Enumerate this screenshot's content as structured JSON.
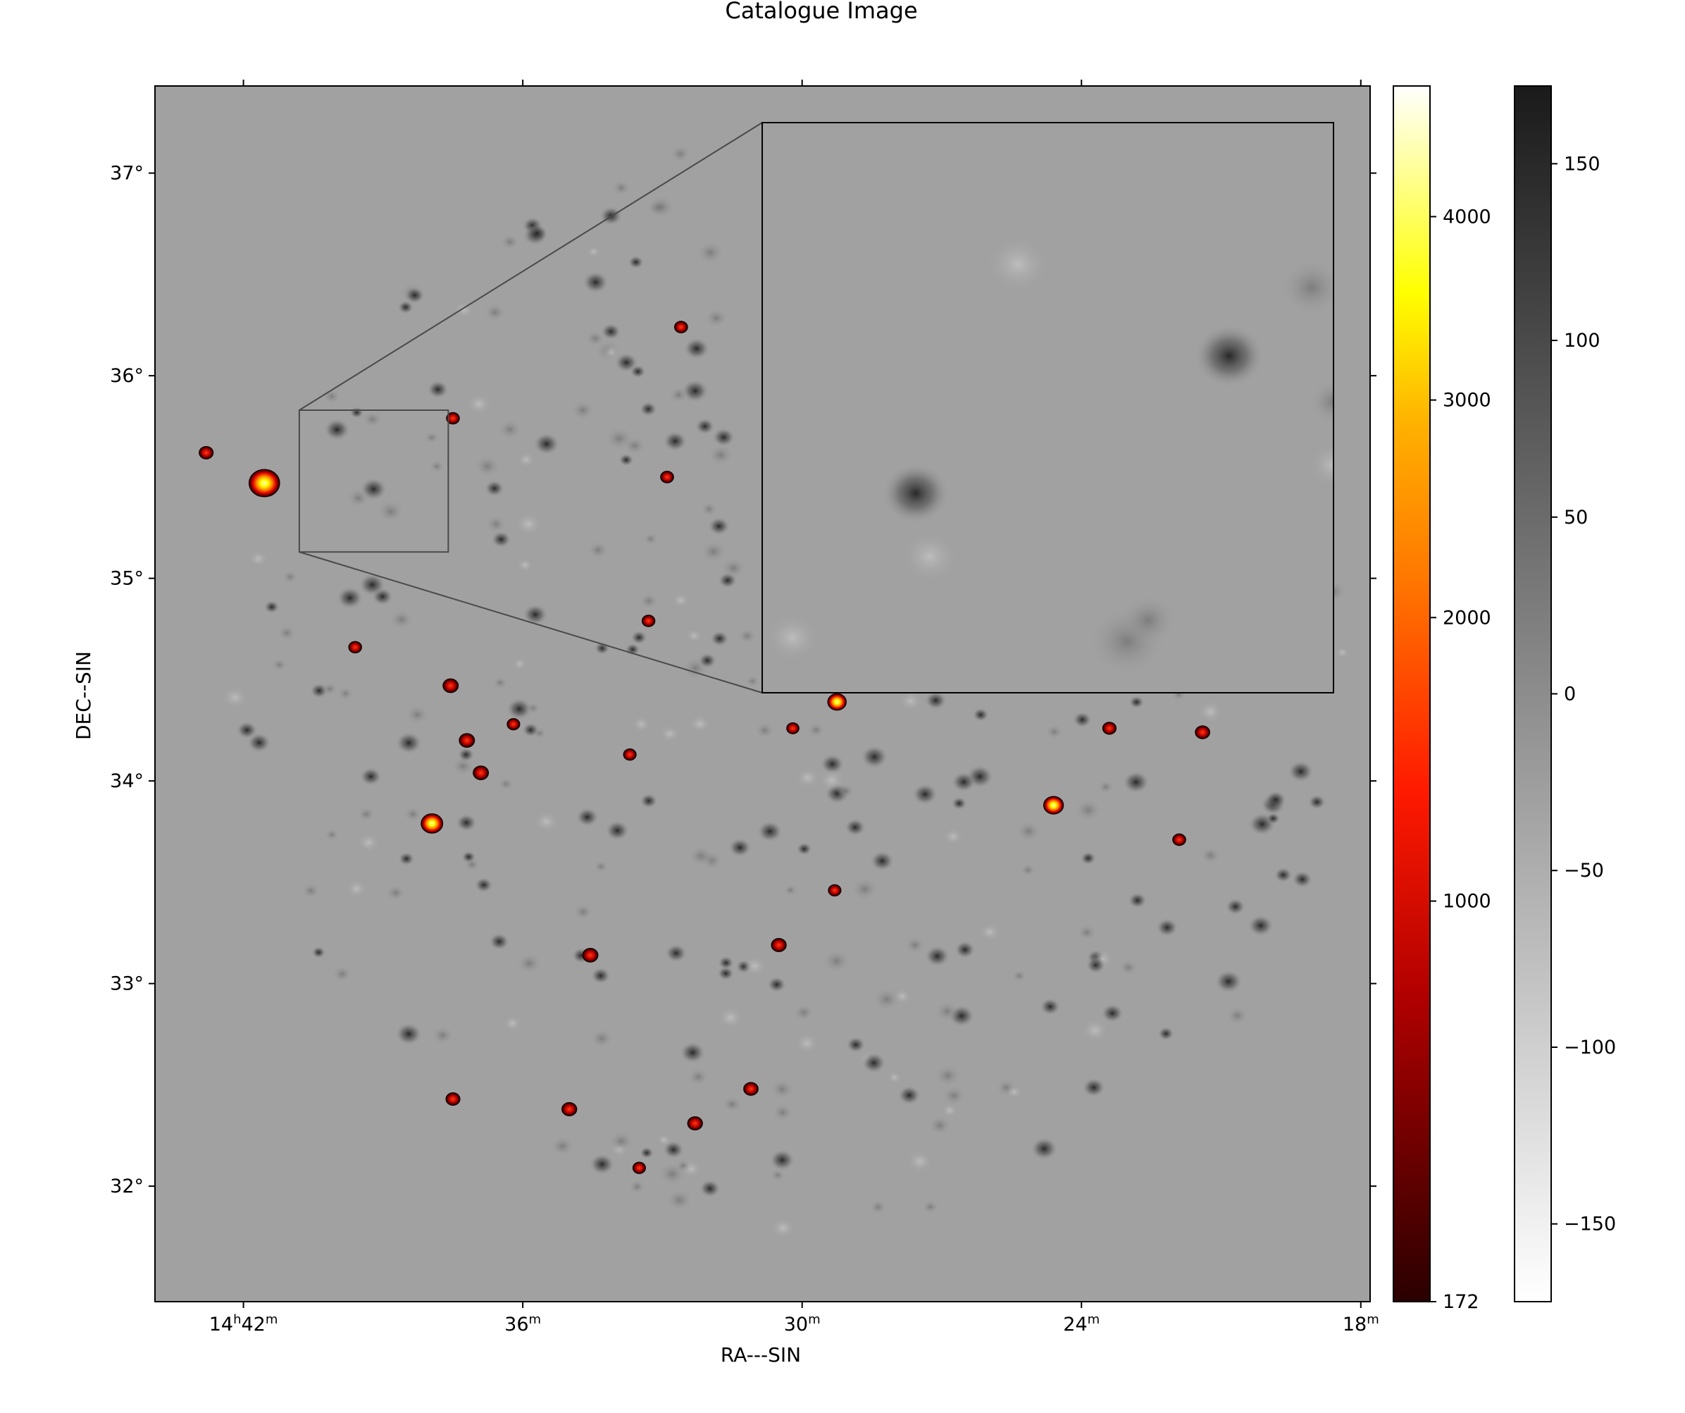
{
  "chart_data": {
    "type": "heatmap",
    "title": "Catalogue Image",
    "xlabel": "RA---SIN",
    "ylabel": "DEC--SIN",
    "xlim_min": [
      43.9,
      17.8
    ],
    "ylim_deg": [
      31.43,
      37.43
    ],
    "x_ticks": [
      {
        "min": 42,
        "label_main": "14",
        "label_sup1": "h",
        "label_num": "42",
        "label_sup2": "m"
      },
      {
        "min": 36,
        "label_main": "36",
        "label_sup1": "",
        "label_num": "",
        "label_sup2": "m"
      },
      {
        "min": 30,
        "label_main": "30",
        "label_sup1": "",
        "label_num": "",
        "label_sup2": "m"
      },
      {
        "min": 24,
        "label_main": "24",
        "label_sup1": "",
        "label_num": "",
        "label_sup2": "m"
      },
      {
        "min": 18,
        "label_main": "18",
        "label_sup1": "",
        "label_num": "",
        "label_sup2": "m"
      }
    ],
    "y_ticks": [
      {
        "deg": 37,
        "label": "37°"
      },
      {
        "deg": 36,
        "label": "36°"
      },
      {
        "deg": 35,
        "label": "35°"
      },
      {
        "deg": 34,
        "label": "34°"
      },
      {
        "deg": 33,
        "label": "33°"
      },
      {
        "deg": 32,
        "label": "32°"
      }
    ],
    "inset": {
      "x_min": [
        40.8,
        37.6
      ],
      "y_deg": [
        35.13,
        35.83
      ]
    },
    "sources_bright": [
      {
        "ra": 41.55,
        "dec": 35.47,
        "flux": 4300
      },
      {
        "ra": 37.95,
        "dec": 33.79,
        "flux": 2300
      },
      {
        "ra": 24.6,
        "dec": 33.88,
        "flux": 1900
      },
      {
        "ra": 29.25,
        "dec": 34.39,
        "flux": 1600
      },
      {
        "ra": 36.9,
        "dec": 34.04,
        "flux": 900
      },
      {
        "ra": 34.55,
        "dec": 33.14,
        "flux": 900
      },
      {
        "ra": 37.55,
        "dec": 34.47,
        "flux": 900
      },
      {
        "ra": 37.2,
        "dec": 34.2,
        "flux": 900
      },
      {
        "ra": 35.0,
        "dec": 32.38,
        "flux": 800
      },
      {
        "ra": 32.3,
        "dec": 32.31,
        "flux": 800
      },
      {
        "ra": 30.5,
        "dec": 33.19,
        "flux": 800
      },
      {
        "ra": 31.1,
        "dec": 32.48,
        "flux": 700
      },
      {
        "ra": 21.4,
        "dec": 34.24,
        "flux": 700
      },
      {
        "ra": 37.5,
        "dec": 32.43,
        "flux": 600
      },
      {
        "ra": 42.8,
        "dec": 35.62,
        "flux": 600
      },
      {
        "ra": 23.4,
        "dec": 34.26,
        "flux": 500
      },
      {
        "ra": 32.6,
        "dec": 36.24,
        "flux": 400
      },
      {
        "ra": 32.9,
        "dec": 35.5,
        "flux": 400
      },
      {
        "ra": 21.9,
        "dec": 33.71,
        "flux": 400
      },
      {
        "ra": 39.6,
        "dec": 34.66,
        "flux": 350
      },
      {
        "ra": 37.5,
        "dec": 35.79,
        "flux": 350
      },
      {
        "ra": 33.3,
        "dec": 34.79,
        "flux": 350
      },
      {
        "ra": 33.7,
        "dec": 34.13,
        "flux": 300
      },
      {
        "ra": 33.5,
        "dec": 32.09,
        "flux": 300
      },
      {
        "ra": 29.3,
        "dec": 33.46,
        "flux": 300
      },
      {
        "ra": 36.2,
        "dec": 34.28,
        "flux": 300
      },
      {
        "ra": 30.2,
        "dec": 34.26,
        "flux": 250
      }
    ],
    "colorbar_flux": {
      "cmap": "hot",
      "ticks": [
        4000,
        3000,
        2000,
        1000,
        172
      ],
      "labels": [
        "4000",
        "3000",
        "2000",
        "1000",
        "172"
      ],
      "min": 172,
      "max": 4800
    },
    "colorbar_residual": {
      "cmap": "gray_r",
      "ticks": [
        150,
        100,
        50,
        0,
        -50,
        -100,
        -150
      ],
      "labels": [
        "150",
        "100",
        "50",
        "0",
        "−50",
        "−100",
        "−150"
      ],
      "min": -172,
      "max": 172
    },
    "grid": false,
    "background_value": 0
  },
  "colors": {
    "background": "#a1a1a1",
    "frame": "#000000",
    "inset_connector": "#4a4a4a"
  }
}
